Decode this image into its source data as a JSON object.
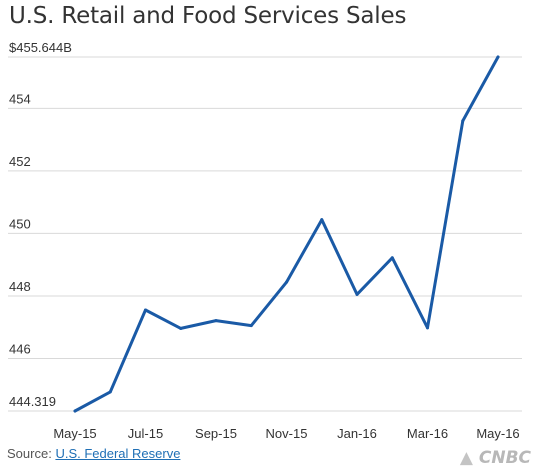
{
  "chart_data": {
    "type": "line",
    "title": "U.S. Retail and Food Services Sales",
    "xlabel": "",
    "ylabel": "",
    "x": [
      "May-15",
      "Jun-15",
      "Jul-15",
      "Aug-15",
      "Sep-15",
      "Oct-15",
      "Nov-15",
      "Dec-15",
      "Jan-16",
      "Feb-16",
      "Mar-16",
      "Apr-16",
      "May-16"
    ],
    "values": [
      444.319,
      444.93,
      447.55,
      446.96,
      447.21,
      447.05,
      448.44,
      450.44,
      448.05,
      449.22,
      446.98,
      453.6,
      455.644
    ],
    "ylim": [
      444.319,
      455.644
    ],
    "y_ticks": [
      {
        "value": 455.644,
        "label": "$455.644B"
      },
      {
        "value": 454,
        "label": "454"
      },
      {
        "value": 452,
        "label": "452"
      },
      {
        "value": 450,
        "label": "450"
      },
      {
        "value": 448,
        "label": "448"
      },
      {
        "value": 446,
        "label": "446"
      },
      {
        "value": 444.319,
        "label": "444.319"
      }
    ],
    "x_ticks": [
      "May-15",
      "Jul-15",
      "Sep-15",
      "Nov-15",
      "Jan-16",
      "Mar-16",
      "May-16"
    ],
    "grid": true,
    "line_color": "#1a5aa6",
    "grid_color": "#d9d9d9"
  },
  "source": {
    "label": "Source:",
    "link_text": "U.S. Federal Reserve"
  },
  "logo_text": "CNBC"
}
